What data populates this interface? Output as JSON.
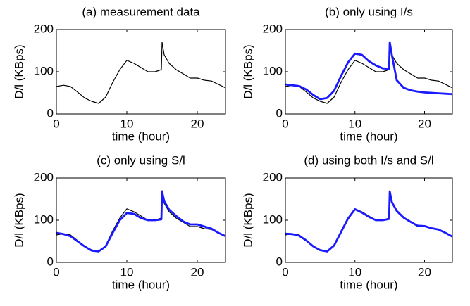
{
  "chart_data": [
    {
      "type": "line",
      "title": "(a) measurement data",
      "xlabel": "time (hour)",
      "ylabel": "D/l (KBps)",
      "xlim": [
        0,
        24
      ],
      "xticks": [
        0,
        10,
        20
      ],
      "ylim": [
        0,
        200
      ],
      "yticks": [
        0,
        100,
        200
      ],
      "x": [
        0,
        1,
        2,
        3,
        4,
        5,
        6,
        7,
        8,
        9,
        10,
        11,
        12,
        13,
        14,
        14.9,
        15,
        15.3,
        16,
        17,
        18,
        19,
        20,
        21,
        22,
        23,
        24
      ],
      "series": [
        {
          "color": "#000000",
          "values": [
            65,
            68,
            65,
            52,
            38,
            30,
            25,
            40,
            75,
            105,
            127,
            120,
            110,
            100,
            100,
            105,
            170,
            140,
            120,
            105,
            95,
            85,
            85,
            80,
            78,
            70,
            62
          ]
        }
      ]
    },
    {
      "type": "line",
      "title": "(b) only using I/s",
      "xlabel": "time (hour)",
      "ylabel": "D/l (KBps)",
      "xlim": [
        0,
        24
      ],
      "xticks": [
        0,
        10,
        20
      ],
      "ylim": [
        0,
        200
      ],
      "yticks": [
        0,
        100,
        200
      ],
      "x": [
        0,
        1,
        2,
        3,
        4,
        5,
        6,
        7,
        8,
        9,
        10,
        11,
        12,
        13,
        14,
        14.9,
        15,
        15.3,
        16,
        17,
        18,
        19,
        20,
        21,
        22,
        23,
        24
      ],
      "series": [
        {
          "color": "#000000",
          "values": [
            65,
            68,
            65,
            52,
            38,
            30,
            25,
            40,
            75,
            105,
            127,
            120,
            110,
            100,
            100,
            105,
            170,
            140,
            120,
            105,
            95,
            85,
            85,
            80,
            78,
            70,
            62
          ]
        },
        {
          "color": "#1a1aff",
          "values": [
            70,
            68,
            66,
            58,
            45,
            35,
            38,
            55,
            90,
            122,
            143,
            140,
            125,
            115,
            108,
            107,
            170,
            140,
            80,
            62,
            56,
            53,
            51,
            50,
            49,
            48,
            47
          ]
        }
      ]
    },
    {
      "type": "line",
      "title": "(c) only using S/l",
      "xlabel": "time (hour)",
      "ylabel": "D/l (KBps)",
      "xlim": [
        0,
        24
      ],
      "xticks": [
        0,
        10,
        20
      ],
      "ylim": [
        0,
        200
      ],
      "yticks": [
        0,
        100,
        200
      ],
      "x": [
        0,
        1,
        2,
        3,
        4,
        5,
        6,
        7,
        8,
        9,
        10,
        11,
        12,
        13,
        14,
        14.9,
        15,
        15.3,
        16,
        17,
        18,
        19,
        20,
        21,
        22,
        23,
        24
      ],
      "series": [
        {
          "color": "#000000",
          "values": [
            65,
            68,
            65,
            52,
            38,
            30,
            25,
            40,
            75,
            105,
            127,
            120,
            110,
            100,
            100,
            105,
            170,
            140,
            120,
            105,
            95,
            85,
            85,
            80,
            78,
            70,
            62
          ]
        },
        {
          "color": "#1a1aff",
          "values": [
            70,
            67,
            62,
            50,
            38,
            28,
            26,
            38,
            70,
            100,
            117,
            115,
            105,
            100,
            100,
            102,
            168,
            145,
            125,
            110,
            97,
            90,
            90,
            85,
            80,
            70,
            62
          ]
        }
      ]
    },
    {
      "type": "line",
      "title": "(d) using both I/s and S/l",
      "xlabel": "time (hour)",
      "ylabel": "D/l (KBps)",
      "xlim": [
        0,
        24
      ],
      "xticks": [
        0,
        10,
        20
      ],
      "ylim": [
        0,
        200
      ],
      "yticks": [
        0,
        100,
        200
      ],
      "x": [
        0,
        1,
        2,
        3,
        4,
        5,
        6,
        7,
        8,
        9,
        10,
        11,
        12,
        13,
        14,
        14.9,
        15,
        15.3,
        16,
        17,
        18,
        19,
        20,
        21,
        22,
        23,
        24
      ],
      "series": [
        {
          "color": "#000000",
          "values": [
            65,
            68,
            65,
            52,
            38,
            30,
            25,
            40,
            75,
            105,
            127,
            120,
            110,
            100,
            100,
            105,
            170,
            140,
            120,
            105,
            95,
            85,
            85,
            80,
            78,
            70,
            62
          ]
        },
        {
          "color": "#1a1aff",
          "values": [
            68,
            67,
            63,
            52,
            38,
            29,
            26,
            40,
            72,
            104,
            126,
            118,
            108,
            100,
            100,
            103,
            168,
            143,
            122,
            106,
            96,
            87,
            86,
            81,
            78,
            70,
            61
          ]
        }
      ]
    }
  ]
}
